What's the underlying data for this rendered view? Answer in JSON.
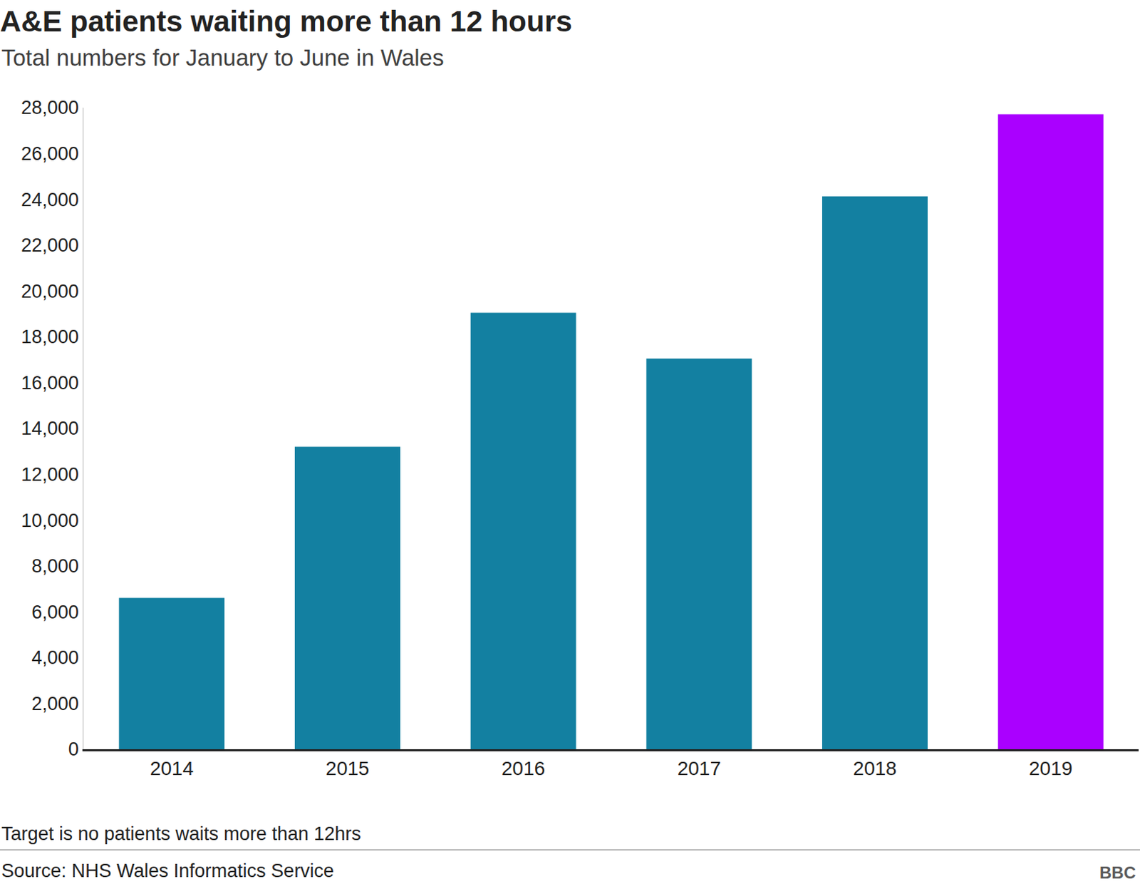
{
  "chart_data": {
    "type": "bar",
    "title": "A&E patients waiting more than 12 hours",
    "subtitle": "Total numbers for January to June in Wales",
    "categories": [
      "2014",
      "2015",
      "2016",
      "2017",
      "2018",
      "2019"
    ],
    "values": [
      6600,
      13200,
      19050,
      17050,
      24130,
      27710
    ],
    "colors": [
      "#1380a1",
      "#1380a1",
      "#1380a1",
      "#1380a1",
      "#1380a1",
      "#aa00ff"
    ],
    "ylim": [
      0,
      28000
    ],
    "yticks": [
      0,
      {
        "value": 2000,
        "label": "2,000"
      },
      {
        "value": 4000,
        "label": "4,000"
      },
      {
        "value": 6000,
        "label": "6,000"
      },
      {
        "value": 8000,
        "label": "8,000"
      },
      {
        "value": 10000,
        "label": "10,000"
      },
      {
        "value": 12000,
        "label": "12,000"
      },
      {
        "value": 14000,
        "label": "14,000"
      },
      {
        "value": 16000,
        "label": "16,000"
      },
      {
        "value": 18000,
        "label": "18,000"
      },
      {
        "value": 20000,
        "label": "20,000"
      },
      {
        "value": 22000,
        "label": "22,000"
      },
      {
        "value": 24000,
        "label": "24,000"
      },
      {
        "value": 26000,
        "label": "26,000"
      },
      {
        "value": 28000,
        "label": "28,000"
      }
    ],
    "grid": false,
    "note": "Target is no patients waits more than 12hrs",
    "source": "Source: NHS Wales Informatics Service",
    "logo": "BBC"
  }
}
